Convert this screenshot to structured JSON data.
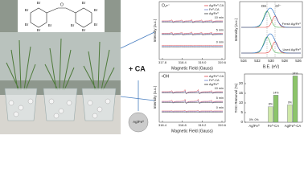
{
  "structure": {
    "labels": [
      "Br",
      "Br",
      "Br",
      "Br",
      "Br",
      "Br",
      "Br",
      "Br",
      "Br",
      "Br"
    ],
    "bridge": "O"
  },
  "plus_ca": "+ CA",
  "ball_label": "Ag/Fe⁰",
  "epr_top": {
    "species": "O₂•⁻",
    "ylabel": "Intensity (a.u.)",
    "xlabel": "Magnetic Field (Gauss)",
    "xticks": [
      "317.8",
      "318.4",
      "319.0",
      "319.6"
    ],
    "legend": [
      "Ag/Fe⁰-CA",
      "Fe⁰-CA",
      "Ag/Fe⁰"
    ],
    "times": [
      "10 min",
      "5 min",
      "0 min"
    ]
  },
  "epr_bottom": {
    "species": "•OH",
    "ylabel": "Intensity (a.u.)",
    "xlabel": "Magnetic Field (Gauss)",
    "xticks": [
      "318.4",
      "318.8",
      "319.2",
      "319.6"
    ],
    "legend": [
      "Ag/Fe⁰-CA",
      "Fe⁰-CA",
      "Ag/Fe⁰"
    ],
    "times": [
      "10 min",
      "5 min",
      "0 min"
    ]
  },
  "xps": {
    "peaks": [
      "OH",
      "O²⁻"
    ],
    "ylabel": "Intensity (a.u.)",
    "xlabel": "B.E. (eV)",
    "xticks": [
      "534",
      "532",
      "530",
      "528",
      "526"
    ],
    "samples": [
      "Fresh Ag/Fe⁰",
      "Used Ag/Fe⁰"
    ]
  },
  "toc": {
    "ylabel": "TOC Removal (%)",
    "categories": [
      "Ag/Fe⁰",
      "Fe⁰-CA",
      "Ag/Fe⁰-CA"
    ],
    "series": [
      {
        "color": "#cfe8a8",
        "values": [
          0,
          8,
          9
        ],
        "value_labels": [
          "0%",
          "8%",
          "9%"
        ]
      },
      {
        "color": "#8cc46a",
        "values": [
          0,
          14,
          24
        ],
        "value_labels": [
          "0%",
          "14%",
          "24%"
        ]
      }
    ],
    "ylim": [
      0,
      25
    ],
    "yticks": [
      0,
      5,
      10,
      15,
      20
    ]
  }
}
